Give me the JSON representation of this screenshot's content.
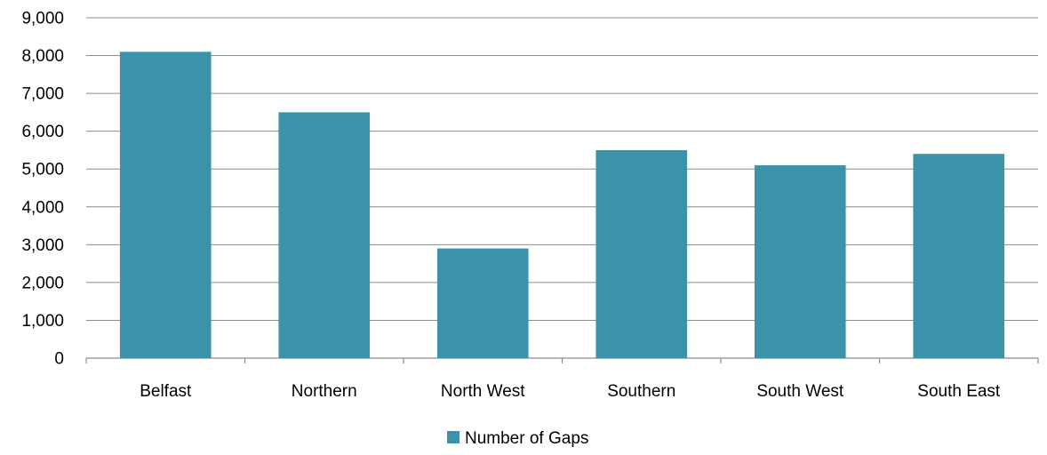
{
  "chart_data": {
    "type": "bar",
    "categories": [
      "Belfast",
      "Northern",
      "North West",
      "Southern",
      "South West",
      "South East"
    ],
    "series": [
      {
        "name": "Number of Gaps",
        "values": [
          8100,
          6500,
          2900,
          5500,
          5100,
          5400
        ],
        "color": "#3A93A8"
      }
    ],
    "ylim": [
      0,
      9000
    ],
    "yticks": [
      0,
      1000,
      2000,
      3000,
      4000,
      5000,
      6000,
      7000,
      8000,
      9000
    ],
    "ytick_labels": [
      "0",
      "1,000",
      "2,000",
      "3,000",
      "4,000",
      "5,000",
      "6,000",
      "7,000",
      "8,000",
      "9,000"
    ],
    "grid": true,
    "legend_position": "bottom"
  }
}
